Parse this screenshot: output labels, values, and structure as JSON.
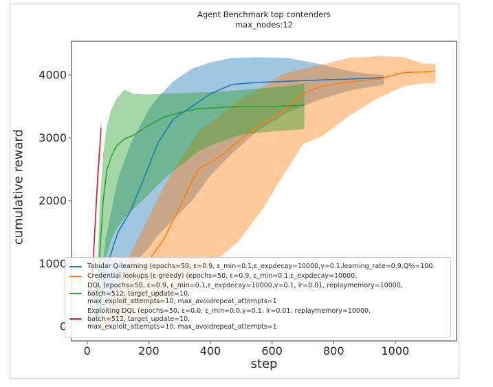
{
  "chart_data": {
    "type": "line",
    "title": "Agent Benchmark top contenders",
    "subtitle": "max_nodes:12",
    "xlabel": "step",
    "ylabel": "cumulative reward",
    "xlim": [
      -51,
      1199
    ],
    "ylim": [
      -230,
      4536
    ],
    "xticks": [
      0,
      200,
      400,
      600,
      800,
      1000
    ],
    "yticks": [
      0,
      1000,
      2000,
      3000,
      4000
    ],
    "grid": false,
    "legend_position": "lower-left",
    "band_alpha": 0.42,
    "series": [
      {
        "id": "tabular-q-learning",
        "name": "Tabular Q-learning",
        "color": "#1f77b4",
        "legend_lines": [
          "Tabular Q-learning (epochs=50, ε=0.9, ε_min=0.1,ε_expdecay=10000,γ=0.1,learning_rate=0.9,Q%=100"
        ],
        "x": [
          30,
          60,
          100,
          140,
          200,
          230,
          280,
          340,
          400,
          470,
          550,
          650,
          750,
          850,
          910,
          963
        ],
        "mean": [
          0,
          900,
          1500,
          1830,
          2550,
          2920,
          3300,
          3500,
          3700,
          3850,
          3880,
          3900,
          3920,
          3935,
          3945,
          3960
        ],
        "upper": [
          120,
          1400,
          2350,
          2900,
          3450,
          3650,
          3900,
          4100,
          4200,
          4270,
          4280,
          4270,
          4180,
          4060,
          4020,
          4000
        ],
        "lower": [
          0,
          280,
          650,
          950,
          1250,
          1450,
          1700,
          2000,
          2400,
          2750,
          3100,
          3400,
          3600,
          3750,
          3800,
          3850
        ]
      },
      {
        "id": "credential-lookups",
        "name": "Credential lookups (ε-greedy)",
        "color": "#ff7f0e",
        "legend_lines": [
          "Credential lookups (ε-greedy) (epochs=50, ε=0.9, ε_min=0.1,ε_expdecay=10000,"
        ],
        "x": [
          50,
          100,
          150,
          250,
          360,
          430,
          490,
          560,
          630,
          700,
          760,
          850,
          950,
          1030,
          1090,
          1130
        ],
        "mean": [
          0,
          350,
          700,
          1400,
          2500,
          2700,
          2950,
          3200,
          3400,
          3700,
          3820,
          3890,
          3940,
          4040,
          4050,
          4060
        ],
        "upper": [
          120,
          700,
          1250,
          2250,
          3100,
          3350,
          3600,
          3780,
          4000,
          4100,
          4160,
          4270,
          4300,
          4280,
          4180,
          4180
        ],
        "lower": [
          0,
          80,
          160,
          420,
          880,
          1100,
          1350,
          1800,
          2350,
          2900,
          3020,
          3350,
          3650,
          3820,
          3870,
          3870
        ]
      },
      {
        "id": "dql",
        "name": "DQL",
        "color": "#2ca02c",
        "legend_lines": [
          "DQL (epochs=50, ε=0.9, ε_min=0.1,ε_expdecay=10000,γ=0.1, lr=0.01, replaymemory=10000,",
          "batch=512, target_update=10,",
          "max_exploit_attempts=10, max_avoidrepeat_attempts=1"
        ],
        "x": [
          28,
          40,
          52,
          64,
          78,
          95,
          120,
          150,
          200,
          250,
          300,
          360,
          420,
          500,
          600,
          660,
          705
        ],
        "mean": [
          0,
          1100,
          2000,
          2490,
          2700,
          2870,
          2980,
          3040,
          3200,
          3330,
          3400,
          3460,
          3480,
          3500,
          3500,
          3510,
          3520
        ],
        "upper": [
          150,
          1900,
          2750,
          3200,
          3450,
          3620,
          3770,
          3700,
          3690,
          3700,
          3710,
          3720,
          3730,
          3760,
          3800,
          3830,
          3860
        ],
        "lower": [
          0,
          450,
          850,
          1150,
          1380,
          1550,
          1720,
          1870,
          2100,
          2350,
          2550,
          2780,
          2920,
          3050,
          3100,
          3120,
          3140
        ]
      },
      {
        "id": "exploiting-dql",
        "name": "Exploiting DQL",
        "color": "#d62728",
        "legend_lines": [
          "Exploiting DQL (epochs=50, ε=0.0, ε_min=0.0,γ=0.1, lr=0.01, replaymemory=10000,",
          "batch=512, target_update=10,",
          "max_exploit_attempts=10, max_avoidrepeat_attempts=1"
        ],
        "x": [
          8,
          20,
          32,
          45
        ],
        "mean": [
          0,
          1100,
          2200,
          3160
        ],
        "upper": [
          60,
          1250,
          2400,
          3300
        ],
        "lower": [
          0,
          950,
          2000,
          2980
        ]
      }
    ]
  },
  "colors": {
    "spine": "#7b7b7b",
    "tick_text": "#262626",
    "outer_frame": "#d8d8d8",
    "legend_border": "#cccccc"
  }
}
